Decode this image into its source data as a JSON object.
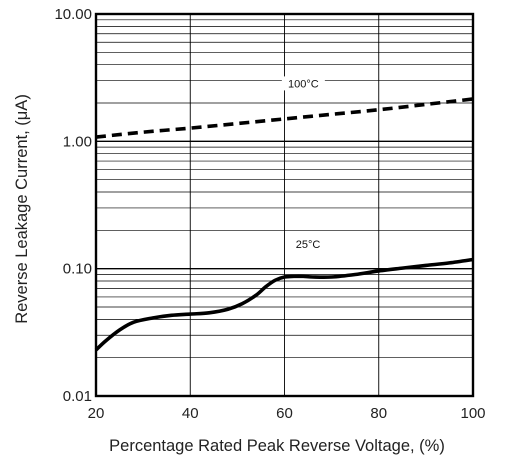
{
  "chart_data": {
    "type": "line",
    "xlabel": "Percentage Rated Peak Reverse Voltage,  (%)",
    "ylabel": "Reverse Leakage Current, (μA)",
    "xlim": [
      20,
      100
    ],
    "ylim": [
      0.01,
      10
    ],
    "yscale": "log",
    "x_ticks": [
      {
        "value": 20,
        "label": "20"
      },
      {
        "value": 40,
        "label": "40"
      },
      {
        "value": 60,
        "label": "60"
      },
      {
        "value": 80,
        "label": "80"
      },
      {
        "value": 100,
        "label": "100"
      }
    ],
    "y_ticks": [
      {
        "value": 0.01,
        "label": "0.01"
      },
      {
        "value": 0.1,
        "label": "0.10"
      },
      {
        "value": 1,
        "label": "1.00"
      },
      {
        "value": 10,
        "label": "10.00"
      }
    ],
    "grid": true,
    "series": [
      {
        "name": "100°C",
        "style": "dashed",
        "x": [
          20,
          30,
          40,
          50,
          60,
          70,
          80,
          90,
          100
        ],
        "y": [
          1.08,
          1.18,
          1.27,
          1.38,
          1.5,
          1.63,
          1.77,
          1.95,
          2.15
        ]
      },
      {
        "name": "25°C",
        "style": "solid",
        "x": [
          20,
          22,
          25,
          28,
          32,
          36,
          40,
          44,
          48,
          51,
          54,
          56,
          58,
          60,
          62,
          64,
          66,
          70,
          75,
          80,
          85,
          90,
          95,
          100
        ],
        "y": [
          0.023,
          0.027,
          0.033,
          0.038,
          0.041,
          0.043,
          0.044,
          0.045,
          0.048,
          0.053,
          0.062,
          0.072,
          0.081,
          0.086,
          0.087,
          0.087,
          0.086,
          0.086,
          0.09,
          0.096,
          0.101,
          0.106,
          0.111,
          0.118
        ]
      }
    ],
    "annotations": [
      {
        "text": "100°C",
        "x": 64,
        "y": 2.7
      },
      {
        "text": "25°C",
        "x": 65,
        "y": 0.148
      }
    ],
    "colors": {
      "line": "#000000",
      "grid": "#000000",
      "background": "#ffffff"
    }
  }
}
